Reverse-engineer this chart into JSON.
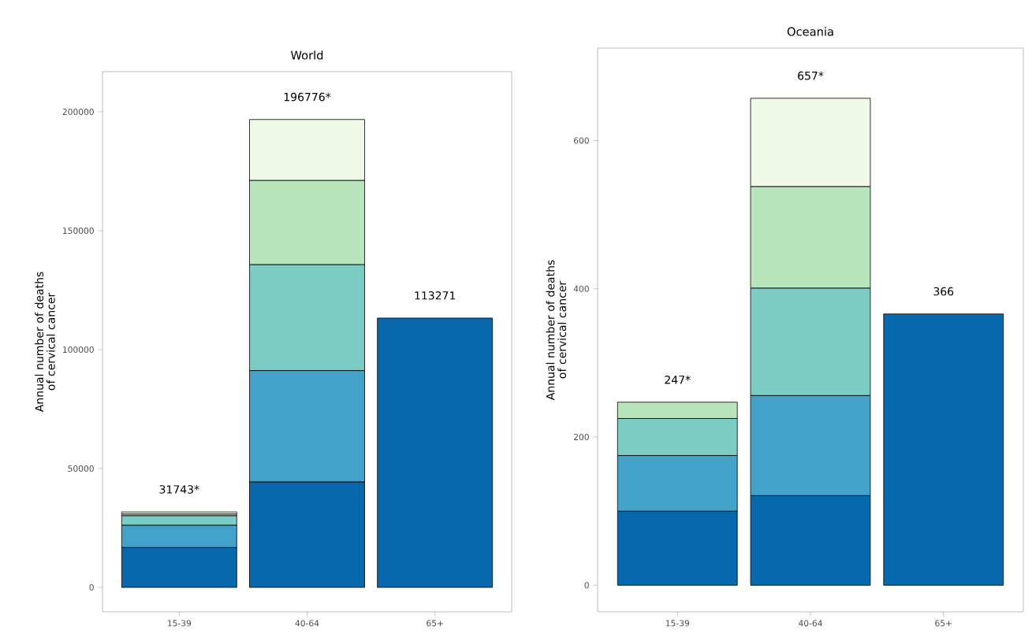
{
  "chart_data": [
    {
      "type": "bar",
      "stacked": true,
      "title": "World",
      "ylabel": "Annual number of deaths of cervical cancer",
      "categories": [
        "15-39",
        "40-64",
        "65+"
      ],
      "series": [
        {
          "color": "#0868ac",
          "values": [
            16800,
            44400,
            113271
          ]
        },
        {
          "color": "#43a2ca",
          "values": [
            9400,
            46800,
            null
          ]
        },
        {
          "color": "#7bccc4",
          "values": [
            4000,
            44600,
            null
          ]
        },
        {
          "color": "#bae4bc",
          "values": [
            700,
            35400,
            null
          ]
        },
        {
          "color": "#f0f9e8",
          "values": [
            843,
            25576,
            null
          ]
        }
      ],
      "totals": [
        "31743*",
        "196776*",
        "113271"
      ],
      "ylim": [
        -10250,
        216900
      ],
      "yticks": [
        0,
        50000,
        100000,
        150000,
        200000
      ],
      "grid": false
    },
    {
      "type": "bar",
      "stacked": true,
      "title": "Oceania",
      "ylabel": "Annual number of deaths of cervical cancer",
      "categories": [
        "15-39",
        "40-64",
        "65+"
      ],
      "series": [
        {
          "color": "#0868ac",
          "values": [
            100,
            121,
            366
          ]
        },
        {
          "color": "#43a2ca",
          "values": [
            75,
            135,
            null
          ]
        },
        {
          "color": "#7bccc4",
          "values": [
            50,
            145,
            null
          ]
        },
        {
          "color": "#bae4bc",
          "values": [
            22,
            137,
            null
          ]
        },
        {
          "color": "#f0f9e8",
          "values": [
            null,
            119,
            null
          ]
        }
      ],
      "totals": [
        "247*",
        "657*",
        "366"
      ],
      "ylim": [
        -35.8,
        724.8
      ],
      "yticks": [
        0,
        200,
        400,
        600
      ],
      "grid": false
    }
  ]
}
